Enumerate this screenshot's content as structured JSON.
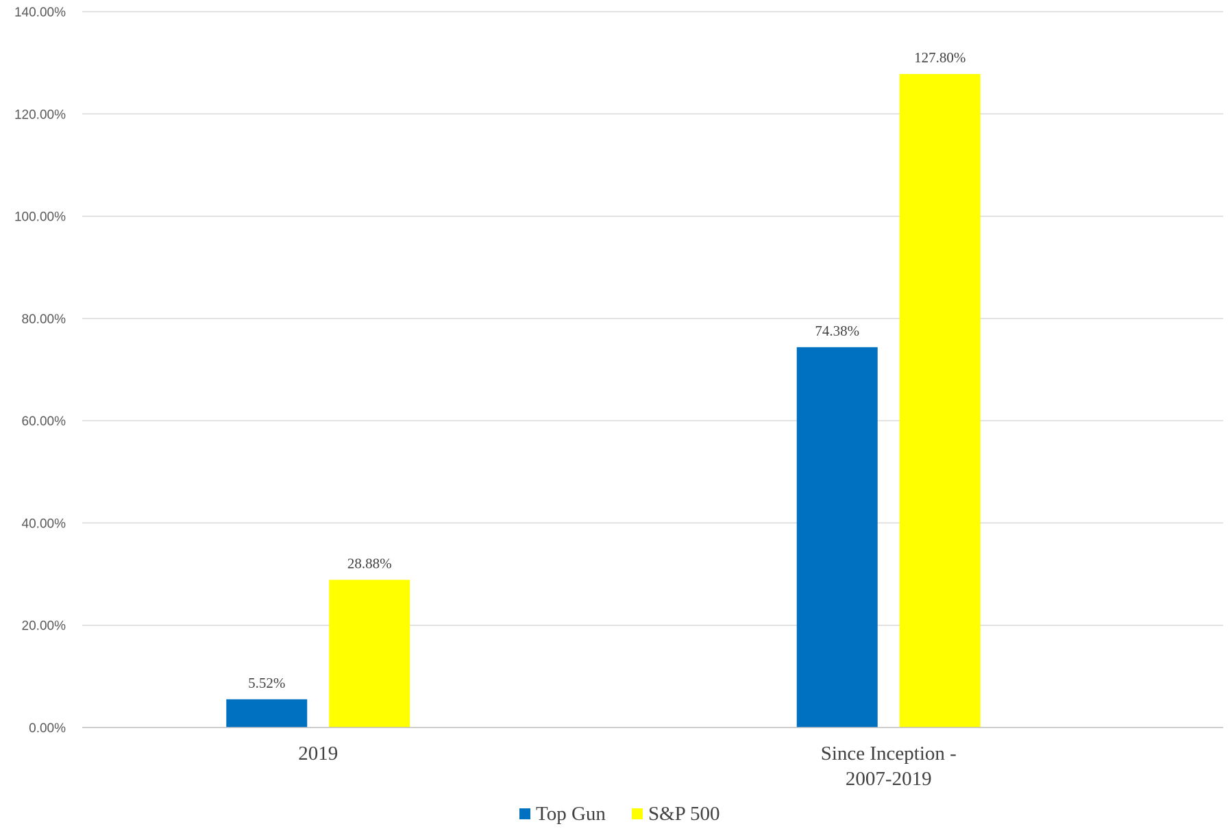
{
  "chart_data": {
    "type": "bar",
    "title": "",
    "xlabel": "",
    "ylabel": "",
    "categories": [
      [
        "2019"
      ],
      [
        "Since Inception -",
        "2007-2019"
      ]
    ],
    "series": [
      {
        "name": "Top Gun",
        "color": "#0070c0",
        "values": [
          5.52,
          74.38
        ],
        "labels": [
          "5.52%",
          "74.38%"
        ]
      },
      {
        "name": "S&P 500",
        "color": "#ffff00",
        "values": [
          28.88,
          127.8
        ],
        "labels": [
          "28.88%",
          "127.80%"
        ]
      }
    ],
    "ylim": [
      0,
      140
    ],
    "yticks": [
      0,
      20,
      40,
      60,
      80,
      100,
      120,
      140
    ],
    "ytick_labels": [
      "0.00%",
      "20.00%",
      "40.00%",
      "60.00%",
      "80.00%",
      "100.00%",
      "120.00%",
      "140.00%"
    ],
    "grid": true,
    "legend_position": "bottom-center"
  }
}
